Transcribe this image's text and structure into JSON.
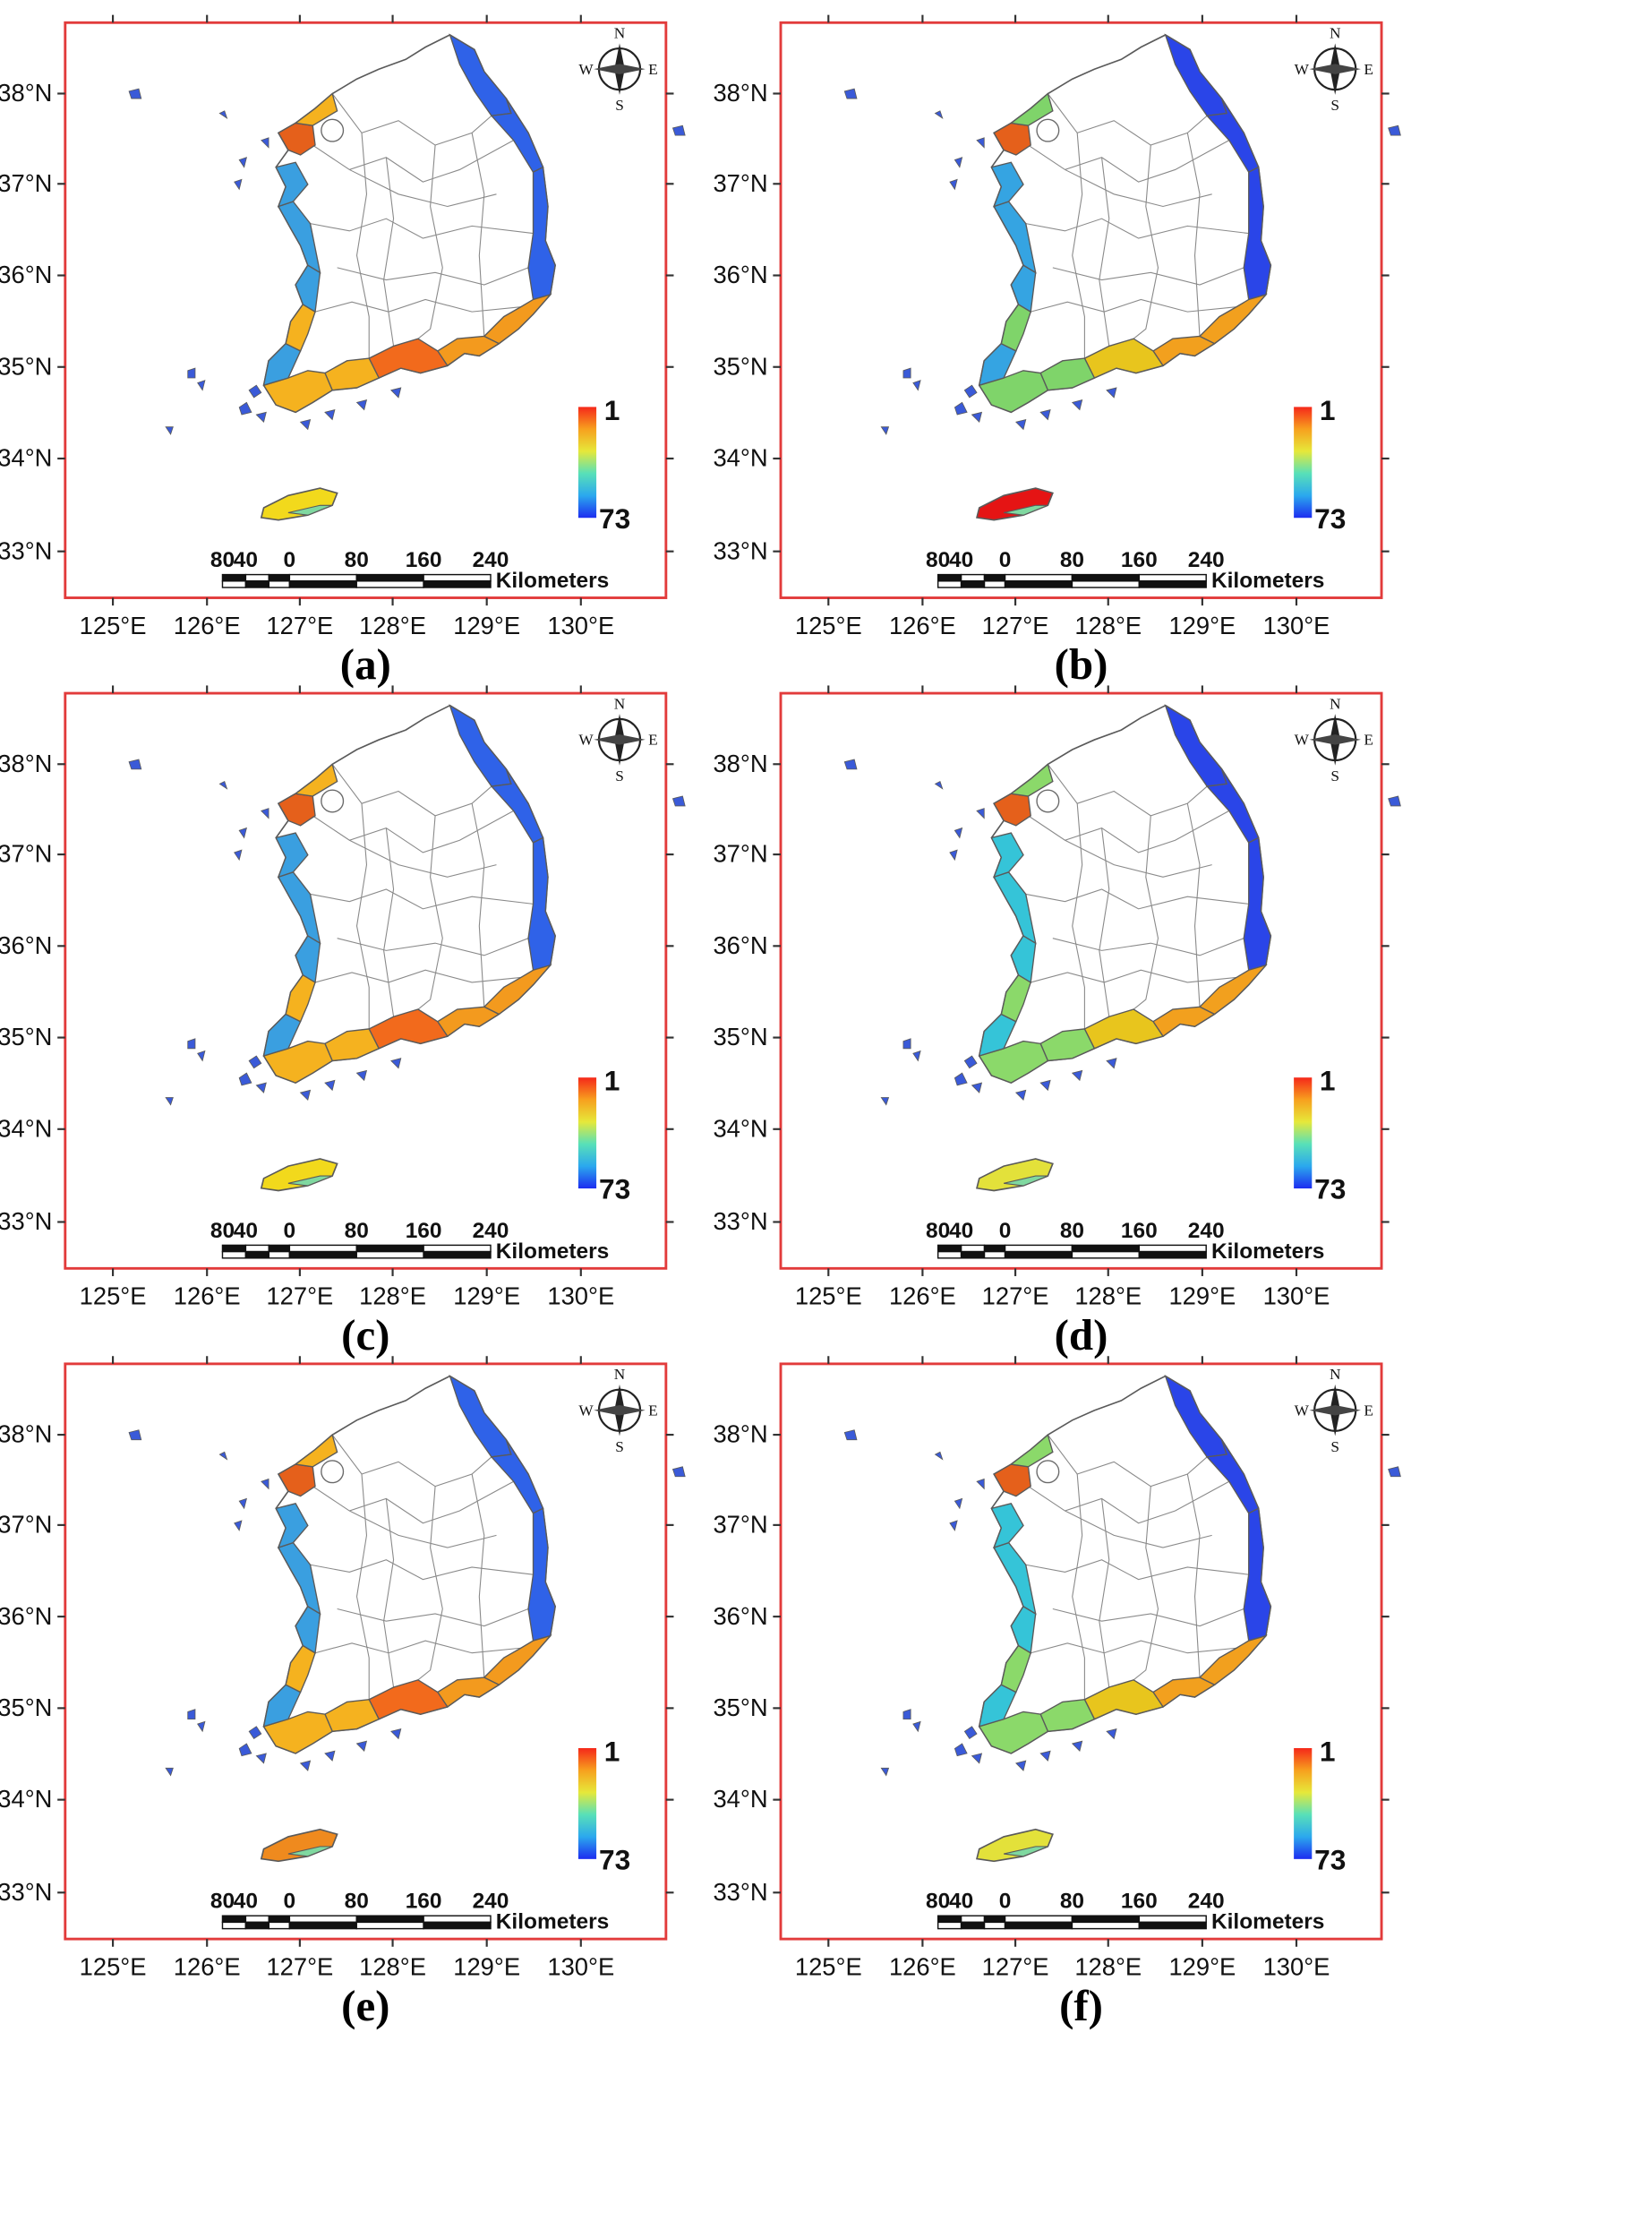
{
  "panels": [
    {
      "id": "a",
      "caption": "(a)",
      "jeju_color": "#f2d91c",
      "sw_color": "#f5b21f",
      "south_color": "#f26a1c",
      "se_color": "#f39a1e",
      "east_color": "#2f62e8",
      "nw_color": "#e5601b",
      "w_color": "#3a9fe0"
    },
    {
      "id": "b",
      "caption": "(b)",
      "jeju_color": "#e51414",
      "sw_color": "#7fd46a",
      "south_color": "#e8c51d",
      "se_color": "#f2a01e",
      "east_color": "#2a45e8",
      "nw_color": "#e5601b",
      "w_color": "#35a4e2"
    },
    {
      "id": "c",
      "caption": "(c)",
      "jeju_color": "#f2d91c",
      "sw_color": "#f5b21f",
      "south_color": "#f26a1c",
      "se_color": "#f39a1e",
      "east_color": "#2f62e8",
      "nw_color": "#e5601b",
      "w_color": "#3a9fe0"
    },
    {
      "id": "d",
      "caption": "(d)",
      "jeju_color": "#e3e13a",
      "sw_color": "#8bd96a",
      "south_color": "#e8c51d",
      "se_color": "#f2a01e",
      "east_color": "#2a45e8",
      "nw_color": "#e5601b",
      "w_color": "#35c4d8"
    },
    {
      "id": "e",
      "caption": "(e)",
      "jeju_color": "#ef8a1e",
      "sw_color": "#f5b21f",
      "south_color": "#f26a1c",
      "se_color": "#f39a1e",
      "east_color": "#2f62e8",
      "nw_color": "#e5601b",
      "w_color": "#3a9fe0"
    },
    {
      "id": "f",
      "caption": "(f)",
      "jeju_color": "#e3e13a",
      "sw_color": "#8bd96a",
      "south_color": "#e8c51d",
      "se_color": "#f2a01e",
      "east_color": "#2a45e8",
      "nw_color": "#e5601b",
      "w_color": "#35c4d8"
    }
  ],
  "lat_labels": [
    "38°N",
    "37°N",
    "36°N",
    "35°N",
    "34°N",
    "33°N"
  ],
  "lon_labels": [
    "125°E",
    "126°E",
    "127°E",
    "128°E",
    "129°E",
    "130°E"
  ],
  "scale_labels": [
    "80",
    "40",
    "0",
    "80",
    "160",
    "240"
  ],
  "scale_unit": "Kilometers",
  "legend": {
    "top": "1",
    "bottom": "73",
    "gradient": [
      "#f5281a",
      "#f7a01e",
      "#e6e83a",
      "#58e0b8",
      "#2ba8ee",
      "#1c2cf0"
    ]
  },
  "compass": {
    "n": "N",
    "s": "S",
    "e": "E",
    "w": "W"
  },
  "colors": {
    "frame": "#e23b3b",
    "outline": "#5a5a5a"
  }
}
